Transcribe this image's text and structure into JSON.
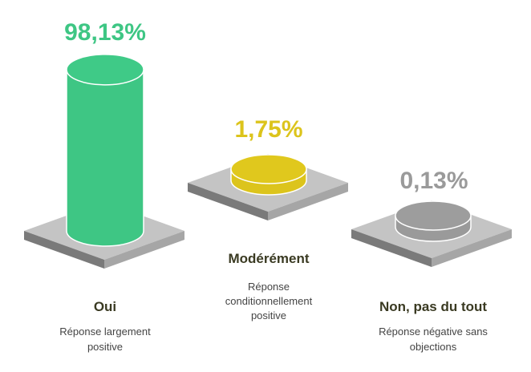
{
  "chart_data": {
    "type": "bar",
    "style": "3d-cylinder-on-platform",
    "categories": [
      "Oui",
      "Modérément",
      "Non, pas du tout"
    ],
    "values": [
      98.13,
      1.75,
      0.13
    ],
    "value_labels": [
      "98,13%",
      "1,75%",
      "0,13%"
    ],
    "descriptions": [
      [
        "Réponse largement",
        "positive"
      ],
      [
        "Réponse",
        "conditionnellement",
        "positive"
      ],
      [
        "Réponse négative sans",
        "objections"
      ]
    ],
    "colors": [
      "#3ec684",
      "#dcc41c",
      "#9a9a9a"
    ],
    "unit": "%",
    "ylim": [
      0,
      100
    ]
  }
}
